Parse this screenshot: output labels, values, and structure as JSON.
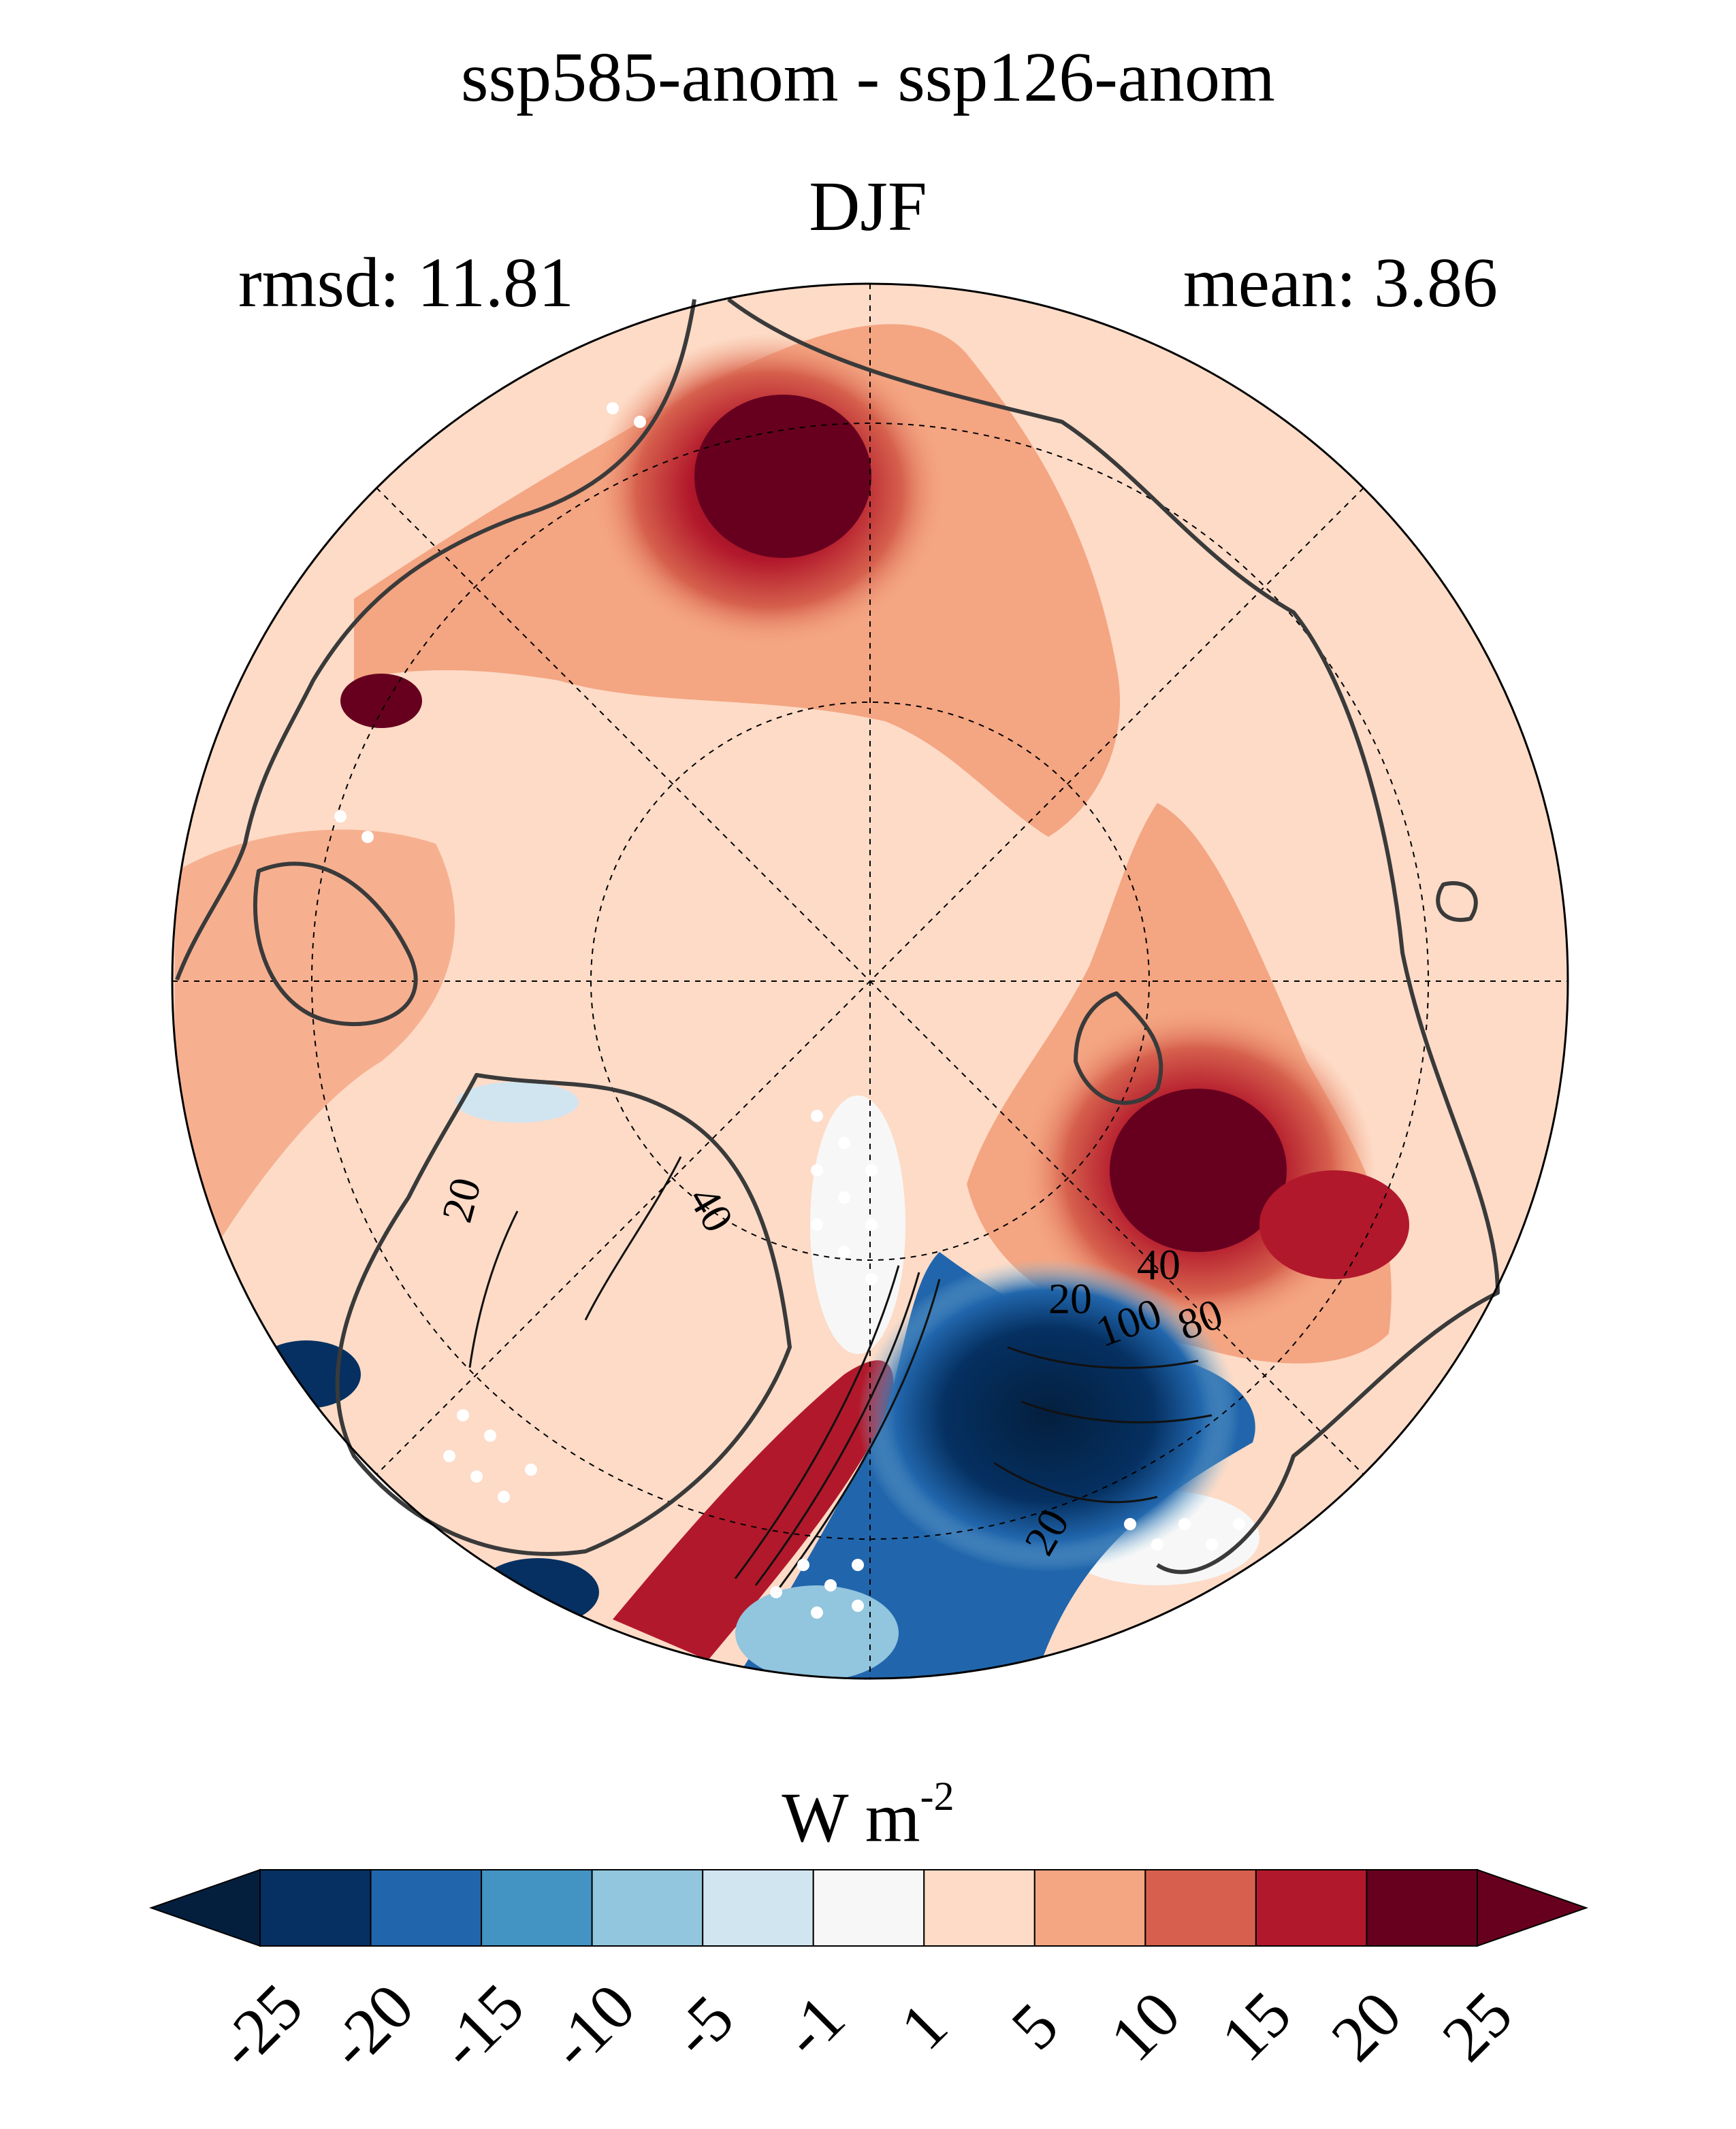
{
  "title": {
    "line1": "ssp585-anom - ssp126-anom",
    "line2": "DJF"
  },
  "stats": {
    "rmsd": "rmsd: 11.81",
    "mean": "mean: 3.86"
  },
  "map": {
    "projection": "north-polar-stereographic",
    "contour_labels": [
      "20",
      "40",
      "20",
      "40",
      "100",
      "80",
      "20"
    ],
    "stippling": "white dots",
    "coastlines": "dark grey",
    "graticule": "dashed black"
  },
  "colorbar": {
    "units_main": "W m",
    "units_exp": "-2",
    "levels": [
      "-25",
      "-20",
      "-15",
      "-10",
      "-5",
      "-1",
      "1",
      "5",
      "10",
      "15",
      "20",
      "25"
    ],
    "colors": [
      "#053061",
      "#2166ac",
      "#4393c3",
      "#92c5de",
      "#d1e5f0",
      "#f7f7f7",
      "#fddbc7",
      "#f4a582",
      "#d6604d",
      "#b2182b",
      "#67001f"
    ],
    "under_color": "#041f3e",
    "over_color": "#67001f"
  }
}
